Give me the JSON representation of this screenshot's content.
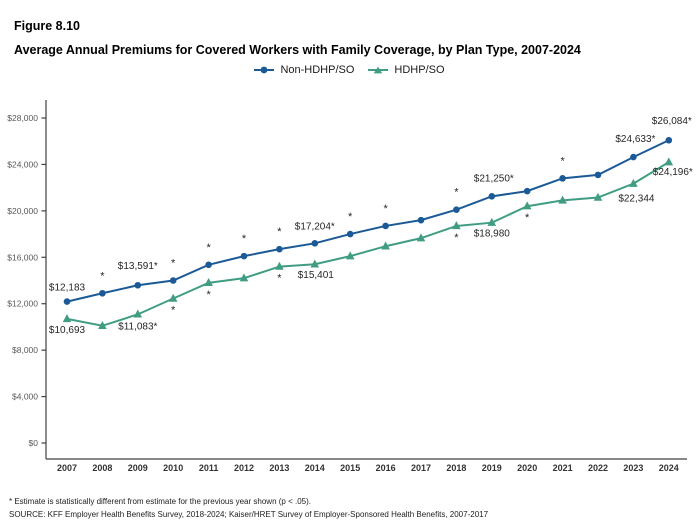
{
  "header": {
    "figure_label": "Figure 8.10"
  },
  "footnotes": {
    "significance": "* Estimate is statistically different from estimate for the previous year shown (p < .05).",
    "source": "SOURCE: KFF Employer Health Benefits Survey, 2018-2024; Kaiser/HRET Survey of Employer-Sponsored Health Benefits, 2007-2017"
  },
  "chart_data": {
    "type": "line",
    "title": "Average Annual Premiums for Covered Workers with Family Coverage, by Plan Type, 2007-2024",
    "x": [
      2007,
      2008,
      2009,
      2010,
      2011,
      2012,
      2013,
      2014,
      2015,
      2016,
      2017,
      2018,
      2019,
      2020,
      2021,
      2022,
      2023,
      2024
    ],
    "ylim": [
      0,
      28000
    ],
    "ytick_step": 4000,
    "yticks": [
      "$0",
      "$4,000",
      "$8,000",
      "$12,000",
      "$16,000",
      "$20,000",
      "$24,000",
      "$28,000"
    ],
    "grid": false,
    "legend_position": "top-center",
    "series": [
      {
        "name": "Non-HDHP/SO",
        "color": "#1b5a96",
        "marker": "circle",
        "values": [
          12183,
          12900,
          13591,
          14000,
          15350,
          16100,
          16700,
          17204,
          18000,
          18700,
          19200,
          20100,
          21250,
          21700,
          22800,
          23100,
          24633,
          26084
        ],
        "star_side": "above",
        "star_years": [
          2008,
          2010,
          2011,
          2012,
          2013,
          2015,
          2016,
          2018,
          2021
        ],
        "point_labels": [
          {
            "year": 2007,
            "text": "$12,183",
            "dx": 0,
            "dy": -11
          },
          {
            "year": 2009,
            "text": "$13,591*",
            "dx": 0,
            "dy": -16
          },
          {
            "year": 2014,
            "text": "$17,204*",
            "dx": 0,
            "dy": -14
          },
          {
            "year": 2019,
            "text": "$21,250*",
            "dx": 2,
            "dy": -15
          },
          {
            "year": 2023,
            "text": "$24,633*",
            "dx": 2,
            "dy": -15
          },
          {
            "year": 2024,
            "text": "$26,084*",
            "dx": 3,
            "dy": -16
          }
        ]
      },
      {
        "name": "HDHP/SO",
        "color": "#409d84",
        "marker": "triangle",
        "values": [
          10693,
          10100,
          11083,
          12450,
          13800,
          14200,
          15200,
          15401,
          16100,
          16950,
          17650,
          18700,
          18980,
          20400,
          20900,
          21150,
          22344,
          24196
        ],
        "star_side": "below",
        "star_years": [
          2010,
          2011,
          2013,
          2018,
          2020
        ],
        "point_labels": [
          {
            "year": 2007,
            "text": "$10,693",
            "dx": 0,
            "dy": 14
          },
          {
            "year": 2009,
            "text": "$11,083*",
            "dx": 0,
            "dy": 15
          },
          {
            "year": 2014,
            "text": "$15,401",
            "dx": 1,
            "dy": 14
          },
          {
            "year": 2019,
            "text": "$18,980",
            "dx": 0,
            "dy": 14
          },
          {
            "year": 2023,
            "text": "$22,344",
            "dx": 3,
            "dy": 18
          },
          {
            "year": 2024,
            "text": "$24,196*",
            "dx": 4,
            "dy": 13
          }
        ]
      }
    ]
  }
}
